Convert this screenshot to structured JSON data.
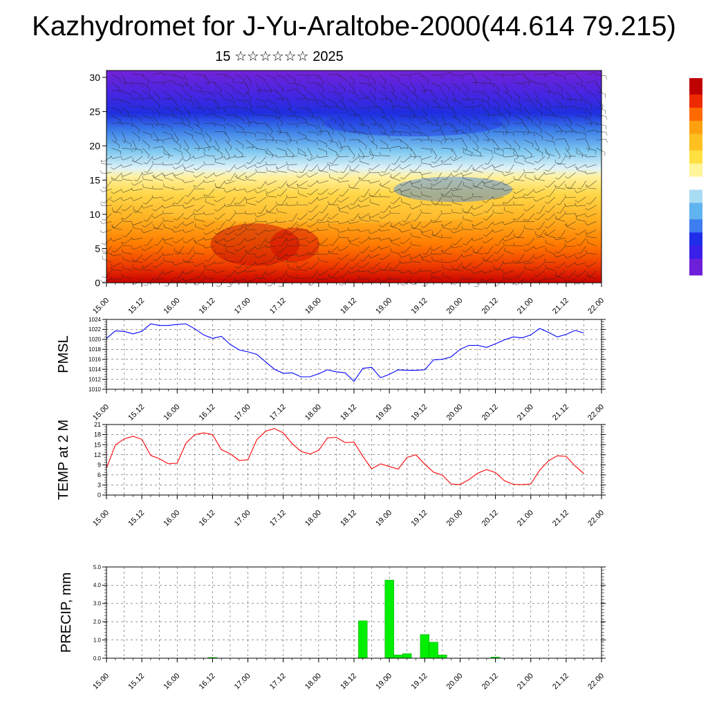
{
  "header": {
    "title": "Kazhydromet for J-Yu-Araltobe-2000(44.614 79.215)",
    "subtitle": "15 ☆☆☆☆☆☆ 2025"
  },
  "colors": {
    "pmsl_line": "#0000ff",
    "temp_line": "#ff0000",
    "precip_bar": "#00ee00",
    "colorbar": [
      "#6e1fd9",
      "#3a1fe8",
      "#1f2ee8",
      "#3e7df0",
      "#5fb4ef",
      "#a8dcf2",
      "#ffffff",
      "#fff59a",
      "#ffe040",
      "#ffc020",
      "#ffa010",
      "#ff6a00",
      "#ee2a00",
      "#c00000"
    ]
  },
  "chart_data": [
    {
      "type": "heatmap",
      "title": "",
      "xlabel": "",
      "ylabel": "",
      "x_ticks": [
        "15.00",
        "15.12",
        "16.00",
        "16.12",
        "17.00",
        "17.12",
        "18.00",
        "18.12",
        "19.00",
        "19.12",
        "20.00",
        "20.12",
        "21.00",
        "21.12",
        "22.00"
      ],
      "y_ticks": [
        "0",
        "5",
        "10",
        "15",
        "20",
        "25",
        "30"
      ],
      "ylim": [
        0,
        31
      ],
      "xlim": [
        0,
        14
      ],
      "overlay": "wind barbs",
      "colorbar": "right, unlabeled"
    },
    {
      "type": "line",
      "ylabel": "PMSL",
      "x_ticks": [
        "15.00",
        "15.12",
        "16.00",
        "16.12",
        "17.00",
        "17.12",
        "18.00",
        "18.12",
        "19.00",
        "19.12",
        "20.00",
        "20.12",
        "21.00",
        "21.12",
        "22.00"
      ],
      "y_ticks": [
        "1010",
        "1012",
        "1014",
        "1016",
        "1018",
        "1020",
        "1022",
        "1024"
      ],
      "ylim": [
        1010,
        1024
      ],
      "xlim": [
        0,
        14
      ],
      "grid": true,
      "series": [
        {
          "x": [
            0,
            0.25,
            0.5,
            0.75,
            1,
            1.25,
            1.5,
            1.75,
            2,
            2.25,
            2.5,
            2.75,
            3,
            3.25,
            3.5,
            3.75,
            4,
            4.25,
            4.5,
            4.75,
            5,
            5.25,
            5.5,
            5.75,
            6,
            6.25,
            6.5,
            6.75,
            7,
            7.25,
            7.5,
            7.75,
            8,
            8.25,
            8.5,
            8.75,
            9,
            9.25,
            9.5,
            9.75,
            10,
            10.25,
            10.5,
            10.75,
            11,
            11.25,
            11.5,
            11.75,
            12,
            12.25,
            12.5,
            12.75,
            13,
            13.25,
            13.5
          ],
          "values": [
            1020.2,
            1021.7,
            1021.6,
            1021.1,
            1021.6,
            1023.1,
            1022.8,
            1022.8,
            1023.0,
            1023.1,
            1022.1,
            1020.9,
            1020.2,
            1020.6,
            1019.0,
            1017.9,
            1017.5,
            1017.0,
            1015.5,
            1014.0,
            1013.2,
            1013.3,
            1012.5,
            1012.5,
            1013.1,
            1013.9,
            1013.5,
            1013.3,
            1011.6,
            1014.2,
            1014.4,
            1012.3,
            1013.0,
            1013.9,
            1013.8,
            1013.8,
            1013.9,
            1015.9,
            1016.0,
            1016.5,
            1018.0,
            1018.8,
            1018.8,
            1018.4,
            1019.1,
            1019.9,
            1020.5,
            1020.3,
            1020.9,
            1022.2,
            1021.4,
            1020.5,
            1021.0,
            1021.8,
            1021.3
          ]
        }
      ]
    },
    {
      "type": "line",
      "ylabel": "TEMP at 2 M",
      "x_ticks": [
        "15.00",
        "15.12",
        "16.00",
        "16.12",
        "17.00",
        "17.12",
        "18.00",
        "18.12",
        "19.00",
        "19.12",
        "20.00",
        "20.12",
        "21.00",
        "21.12",
        "22.00"
      ],
      "y_ticks": [
        "0",
        "3",
        "6",
        "9",
        "12",
        "15",
        "18",
        "21"
      ],
      "ylim": [
        0,
        21
      ],
      "xlim": [
        0,
        14
      ],
      "grid": true,
      "series": [
        {
          "x": [
            0,
            0.25,
            0.5,
            0.75,
            1,
            1.25,
            1.5,
            1.75,
            2,
            2.25,
            2.5,
            2.75,
            3,
            3.25,
            3.5,
            3.75,
            4,
            4.25,
            4.5,
            4.75,
            5,
            5.25,
            5.5,
            5.75,
            6,
            6.25,
            6.5,
            6.75,
            7,
            7.25,
            7.5,
            7.75,
            8,
            8.25,
            8.5,
            8.75,
            9,
            9.25,
            9.5,
            9.75,
            10,
            10.25,
            10.5,
            10.75,
            11,
            11.25,
            11.5,
            11.75,
            12,
            12.25,
            12.5,
            12.75,
            13,
            13.25,
            13.5
          ],
          "values": [
            8.0,
            14.9,
            16.7,
            17.5,
            16.6,
            11.8,
            10.8,
            9.3,
            9.5,
            15.5,
            18.0,
            18.5,
            18.0,
            13.5,
            12.3,
            10.3,
            10.5,
            16.5,
            19.0,
            19.8,
            18.5,
            15.3,
            13.0,
            12.2,
            13.3,
            17.0,
            17.2,
            15.6,
            15.8,
            11.5,
            7.8,
            9.3,
            8.5,
            7.7,
            11.2,
            12.0,
            9.2,
            6.8,
            5.9,
            3.3,
            3.1,
            4.6,
            6.5,
            7.6,
            6.7,
            4.3,
            3.2,
            3.1,
            3.3,
            7.4,
            10.2,
            11.7,
            11.5,
            8.7,
            6.4
          ]
        }
      ]
    },
    {
      "type": "bar",
      "ylabel": "PRECIP, mm",
      "x_ticks": [
        "15.00",
        "15.12",
        "16.00",
        "16.12",
        "17.00",
        "17.12",
        "18.00",
        "18.12",
        "19.00",
        "19.12",
        "20.00",
        "20.12",
        "21.00",
        "21.12",
        "22.00"
      ],
      "y_ticks": [
        "0.0",
        "1.0",
        "2.0",
        "3.0",
        "4.0",
        "5.0"
      ],
      "ylim": [
        0,
        5
      ],
      "xlim": [
        0,
        14
      ],
      "grid": true,
      "series": [
        {
          "x": [
            3.0,
            7.25,
            8.0,
            8.25,
            8.5,
            9.0,
            9.25,
            9.5,
            11.0
          ],
          "values": [
            0.04,
            2.05,
            4.28,
            0.18,
            0.25,
            1.3,
            0.88,
            0.18,
            0.06
          ]
        }
      ]
    }
  ]
}
